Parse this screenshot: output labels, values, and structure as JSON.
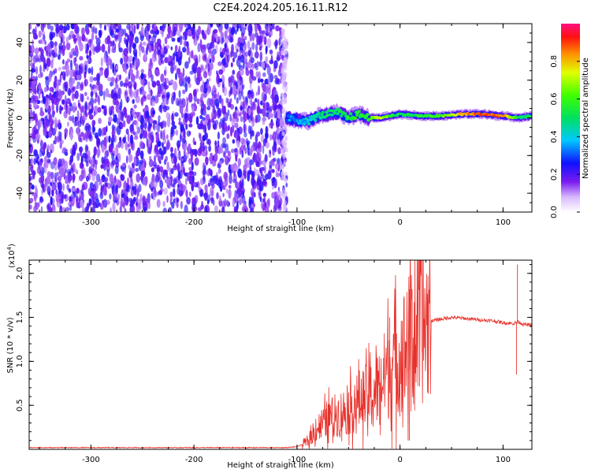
{
  "title": "C2E4.2024.205.16.11.R12",
  "chart_data": [
    {
      "type": "heatmap",
      "title": "C2E4.2024.205.16.11.R12",
      "xlabel": "Height of straight line (km)",
      "ylabel": "Frequency (Hz)",
      "xlim": [
        -360,
        128
      ],
      "ylim": [
        -50,
        50
      ],
      "x_ticks": [
        -300,
        -200,
        -100,
        0,
        100
      ],
      "y_ticks": [
        -40,
        -20,
        0,
        20,
        40
      ],
      "noise_region": {
        "x_range": [
          -360,
          -110
        ],
        "amplitude": [
          0.1,
          0.25
        ]
      },
      "signal_track": {
        "x": [
          -110,
          -100,
          -90,
          -80,
          -70,
          -60,
          -50,
          -40,
          -30,
          -20,
          -10,
          0,
          20,
          40,
          60,
          80,
          100,
          115,
          128
        ],
        "freq": [
          0,
          -1,
          -2,
          1,
          2,
          3,
          0,
          2,
          0,
          0,
          1,
          2,
          1,
          1,
          2,
          2,
          1,
          0,
          1
        ],
        "amplitude": [
          0.3,
          0.35,
          0.4,
          0.45,
          0.5,
          0.5,
          0.55,
          0.55,
          0.6,
          0.75,
          0.6,
          0.5,
          0.55,
          0.6,
          0.8,
          0.9,
          0.85,
          0.5,
          0.5
        ]
      },
      "colorbar": {
        "label": "Normalized spectral amplitude",
        "range": [
          0.0,
          1.0
        ],
        "ticks": [
          "0.0",
          "0.2",
          "0.4",
          "0.6",
          "0.8"
        ]
      }
    },
    {
      "type": "line",
      "xlabel": "Height of straight line (km)",
      "ylabel": "SNR (10 * v/v)",
      "y_multiplier": "(x10",
      "y_multiplier_exp": "4",
      "xlim": [
        -360,
        128
      ],
      "ylim": [
        0,
        2.15
      ],
      "x_ticks": [
        -300,
        -200,
        -100,
        0,
        100
      ],
      "y_ticks": [
        "0.5",
        "1.0",
        "1.5",
        "2.0"
      ],
      "color": "#e8312b",
      "series": [
        {
          "name": "SNR",
          "x": [
            -360,
            -300,
            -200,
            -110,
            -100,
            -90,
            -80,
            -70,
            -60,
            -50,
            -40,
            -30,
            -20,
            -10,
            0,
            10,
            20,
            30,
            40,
            50,
            60,
            70,
            80,
            90,
            100,
            110,
            115,
            120,
            128
          ],
          "y": [
            0.02,
            0.02,
            0.02,
            0.02,
            0.03,
            0.08,
            0.25,
            0.35,
            0.4,
            0.45,
            0.55,
            0.6,
            0.7,
            0.95,
            1.05,
            1.25,
            1.4,
            1.46,
            1.48,
            1.5,
            1.49,
            1.48,
            1.47,
            1.46,
            1.44,
            1.43,
            1.45,
            1.42,
            1.41
          ]
        }
      ],
      "spikes": [
        {
          "x": 9,
          "y": 1.82
        },
        {
          "x": 9,
          "y": 0.1
        },
        {
          "x": -10,
          "y": 1.5
        },
        {
          "x": 113,
          "y": 0.85
        },
        {
          "x": 114,
          "y": 2.1
        }
      ]
    }
  ]
}
